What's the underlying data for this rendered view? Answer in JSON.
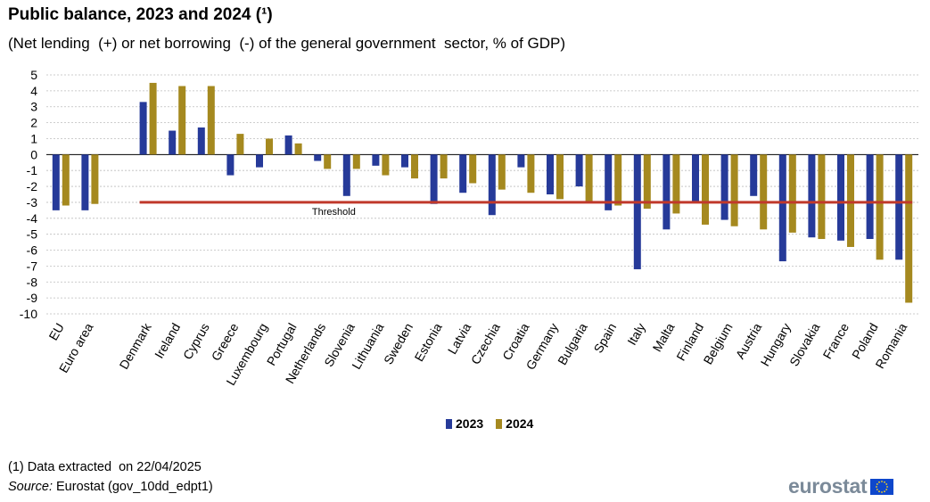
{
  "title": "Public balance, 2023 and 2024 (¹)",
  "subtitle": "(Net lending  (+) or net borrowing  (-) of the general government  sector, % of GDP)",
  "legend": {
    "series_2023": "2023",
    "series_2024": "2024"
  },
  "footnote": "(1) Data extracted  on 22/04/2025",
  "source_label": "Source:",
  "source_text": "Eurostat (gov_10dd_edpt1)",
  "logo_text": "eurostat",
  "colors": {
    "s2023": "#263a99",
    "s2024": "#a5891f",
    "threshold": "#c0392b",
    "grid": "#bdbdbd"
  },
  "chart_data": {
    "type": "bar",
    "title": "Public balance, 2023 and 2024 (¹)",
    "ylabel": "% of GDP",
    "ylim": [
      -10,
      5
    ],
    "yticks": [
      5,
      4,
      3,
      2,
      1,
      0,
      -1,
      -2,
      -3,
      -4,
      -5,
      -6,
      -7,
      -8,
      -9,
      -10
    ],
    "grid": true,
    "categories": [
      "EU",
      "Euro area",
      "",
      "Denmark",
      "Ireland",
      "Cyprus",
      "Greece",
      "Luxembourg",
      "Portugal",
      "Netherlands",
      "Slovenia",
      "Lithuania",
      "Sweden",
      "Estonia",
      "Latvia",
      "Czechia",
      "Croatia",
      "Germany",
      "Bulgaria",
      "Spain",
      "Italy",
      "Malta",
      "Finland",
      "Belgium",
      "Austria",
      "Hungary",
      "Slovakia",
      "France",
      "Poland",
      "Romania"
    ],
    "series": [
      {
        "name": "2023",
        "values": [
          -3.5,
          -3.5,
          null,
          3.3,
          1.5,
          1.7,
          -1.3,
          -0.8,
          1.2,
          -0.4,
          -2.6,
          -0.7,
          -0.8,
          -3.1,
          -2.4,
          -3.8,
          -0.8,
          -2.5,
          -2.0,
          -3.5,
          -7.2,
          -4.7,
          -3.0,
          -4.1,
          -2.6,
          -6.7,
          -5.2,
          -5.4,
          -5.3,
          -6.6
        ]
      },
      {
        "name": "2024",
        "values": [
          -3.2,
          -3.1,
          null,
          4.5,
          4.3,
          4.3,
          1.3,
          1.0,
          0.7,
          -0.9,
          -0.9,
          -1.3,
          -1.5,
          -1.5,
          -1.8,
          -2.2,
          -2.4,
          -2.8,
          -3.0,
          -3.2,
          -3.4,
          -3.7,
          -4.4,
          -4.5,
          -4.7,
          -4.9,
          -5.3,
          -5.8,
          -6.6,
          -9.3
        ]
      }
    ],
    "threshold": {
      "label": "Threshold",
      "value": -3,
      "from_category": "Denmark",
      "to_category": "Romania"
    }
  }
}
